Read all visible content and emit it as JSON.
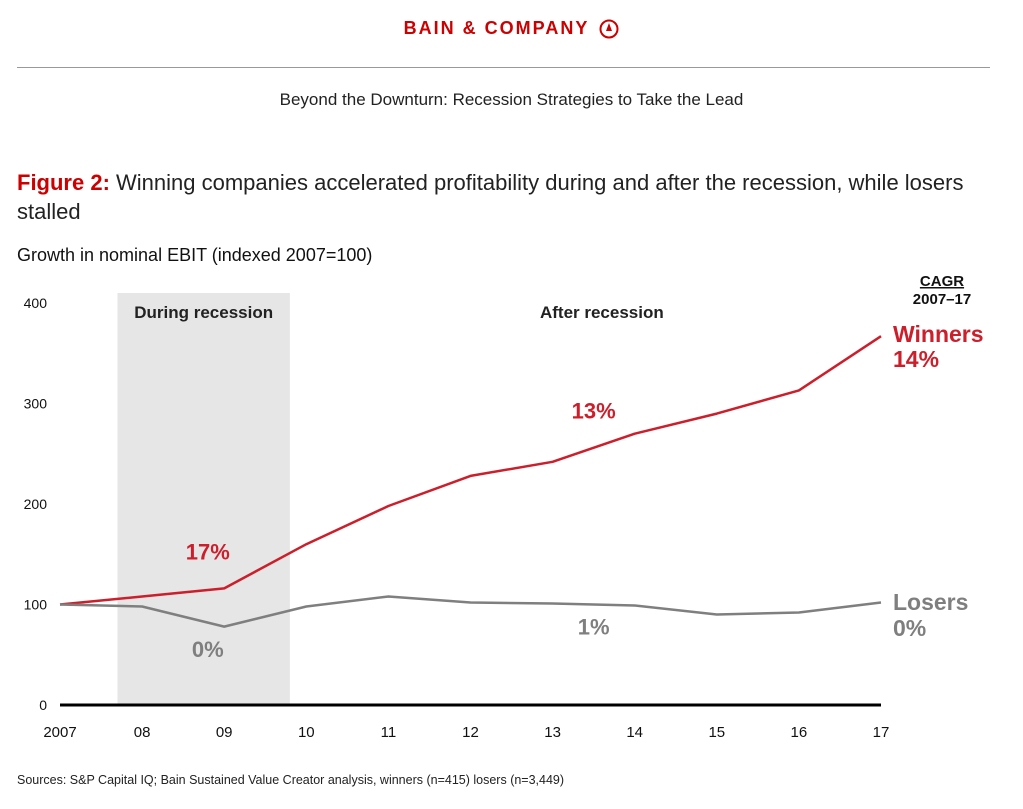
{
  "header": {
    "brand": "BAIN & COMPANY",
    "report_title": "Beyond the Downturn: Recession Strategies to Take the Lead"
  },
  "figure": {
    "label": "Figure 2:",
    "title": "Winning companies accelerated profitability during and after the recession, while losers stalled"
  },
  "source": "Sources: S&P Capital IQ; Bain Sustained Value Creator analysis, winners (n=415) losers (n=3,449)",
  "colors": {
    "brand": "#cc0000",
    "winners": "#cc1f2b",
    "losers": "#7f7f7f",
    "shade": "#e6e6e6"
  },
  "chart_data": {
    "type": "line",
    "ylabel": "Growth in nominal EBIT (indexed 2007=100)",
    "categories": [
      "2007",
      "08",
      "09",
      "10",
      "11",
      "12",
      "13",
      "14",
      "15",
      "16",
      "17"
    ],
    "ylim": [
      0,
      400
    ],
    "yticks": [
      0,
      100,
      200,
      300,
      400
    ],
    "grid": false,
    "series": [
      {
        "name": "Winners",
        "end_label": "14%",
        "color": "#cc1f2b",
        "values": [
          100,
          108,
          116,
          160,
          198,
          228,
          242,
          270,
          290,
          313,
          367
        ]
      },
      {
        "name": "Losers",
        "end_label": "0%",
        "color": "#7f7f7f",
        "values": [
          100,
          98,
          78,
          98,
          108,
          102,
          101,
          99,
          90,
          92,
          102
        ]
      }
    ],
    "shaded_region": {
      "label": "During recession",
      "from": 0.7,
      "to": 2.8
    },
    "region_labels": [
      "During recession",
      "After recession"
    ],
    "legend_header": [
      "CAGR",
      "2007–17"
    ],
    "annotations": [
      {
        "text": "17%",
        "series": "Winners",
        "x": 1.8,
        "y": 145
      },
      {
        "text": "0%",
        "series": "Losers",
        "x": 1.8,
        "y": 48
      },
      {
        "text": "13%",
        "series": "Winners",
        "x": 6.5,
        "y": 285
      },
      {
        "text": "1%",
        "series": "Losers",
        "x": 6.5,
        "y": 70
      }
    ]
  }
}
